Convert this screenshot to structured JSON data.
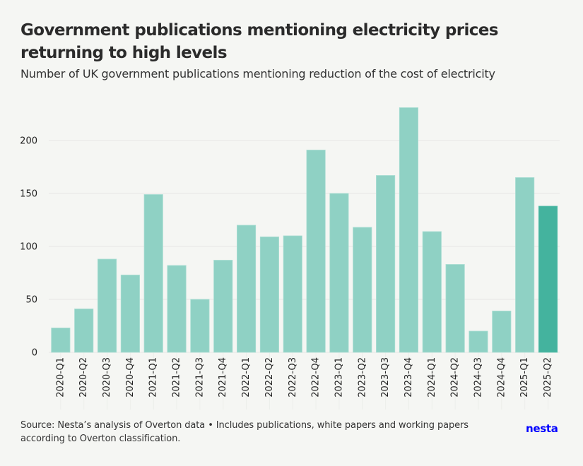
{
  "header": {
    "title": "Government publications mentioning electricity prices returning to high levels",
    "subtitle": "Number of UK government publications mentioning reduction of the cost of electricity"
  },
  "footer": {
    "source": "Source: Nesta’s analysis of Overton data • Includes publications, white papers and working papers according to Overton classification.",
    "logo": "nesta"
  },
  "colors": {
    "bar": "#8fd1c4",
    "highlight_bar": "#44b39e",
    "background": "#f5f6f3",
    "grid": "#e9eae7",
    "logo": "#0000ff"
  },
  "chart_data": {
    "type": "bar",
    "title": "Government publications mentioning electricity prices returning to high levels",
    "subtitle": "Number of UK government publications mentioning reduction of the cost of electricity",
    "xlabel": "",
    "ylabel": "",
    "categories": [
      "2020-Q1",
      "2020-Q2",
      "2020-Q3",
      "2020-Q4",
      "2021-Q1",
      "2021-Q2",
      "2021-Q3",
      "2021-Q4",
      "2022-Q1",
      "2022-Q2",
      "2022-Q3",
      "2022-Q4",
      "2023-Q1",
      "2023-Q2",
      "2023-Q3",
      "2023-Q4",
      "2024-Q1",
      "2024-Q2",
      "2024-Q3",
      "2024-Q4",
      "2025-Q1",
      "2025-Q2"
    ],
    "values": [
      23,
      41,
      88,
      73,
      149,
      82,
      50,
      87,
      120,
      109,
      110,
      191,
      150,
      118,
      167,
      231,
      114,
      83,
      20,
      39,
      165,
      138
    ],
    "highlighted": [
      "2025-Q2"
    ],
    "ylim": [
      0,
      235
    ],
    "yticks": [
      0,
      50,
      100,
      150,
      200
    ],
    "ytick_labels": [
      "0",
      "50",
      "100",
      "150",
      "200"
    ],
    "grid": true,
    "legend": "none",
    "source": "Source: Nesta’s analysis of Overton data • Includes publications, white papers and working papers according to Overton classification."
  }
}
